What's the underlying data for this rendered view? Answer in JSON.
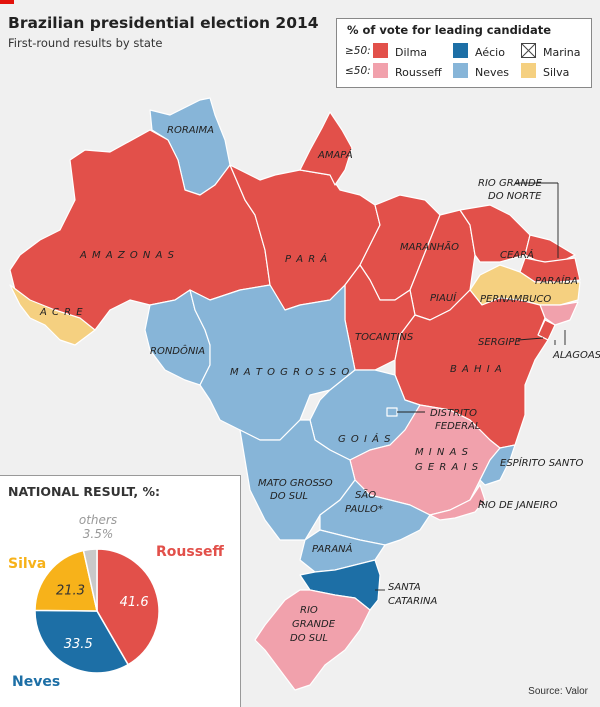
{
  "title": "Brazilian presidential election 2014",
  "subtitle": "First-round results by state",
  "source": "Source: Valor",
  "legend": {
    "title": "% of vote for leading candidate",
    "threshold_high": "≥50:",
    "threshold_low": "≤50:",
    "dilma_line1": "Dilma",
    "dilma_line2": "Rousseff",
    "aecio_line1": "Aécio",
    "aecio_line2": "Neves",
    "marina_line1": "Marina",
    "marina_line2": "Silva"
  },
  "colors": {
    "rousseff_high": "#e2504a",
    "rousseff_low": "#f1a1ac",
    "neves_high": "#1d6fa6",
    "neves_low": "#87b5d8",
    "silva_low": "#f5d080",
    "pie_rousseff": "#e2504a",
    "pie_neves": "#1d6fa6",
    "pie_silva": "#f7b21a",
    "pie_others": "#c9c9c9"
  },
  "states": [
    {
      "label": "RORAIMA",
      "leader": "Neves",
      "share": "≤50"
    },
    {
      "label": "AMAPÁ",
      "leader": "Rousseff",
      "share": "≥50"
    },
    {
      "label": "A M A Z O N A S",
      "leader": "Rousseff",
      "share": "≥50"
    },
    {
      "label": "P A R Á",
      "leader": "Rousseff",
      "share": "≥50"
    },
    {
      "label": "MARANHÃO",
      "leader": "Rousseff",
      "share": "≥50"
    },
    {
      "label": "CEARÁ",
      "leader": "Rousseff",
      "share": "≥50"
    },
    {
      "label": "RIO GRANDE",
      "label2": "DO NORTE",
      "leader": "Rousseff",
      "share": "≥50"
    },
    {
      "label": "PARAÍBA",
      "leader": "Rousseff",
      "share": "≥50"
    },
    {
      "label": "PIAUÍ",
      "leader": "Rousseff",
      "share": "≥50"
    },
    {
      "label": "PERNAMBUCO",
      "leader": "Silva",
      "share": "≤50"
    },
    {
      "label": "ALAGOAS",
      "leader": "Rousseff",
      "share": "≤50"
    },
    {
      "label": "SERGIPE",
      "leader": "Rousseff",
      "share": "≥50"
    },
    {
      "label": "TOCANTINS",
      "leader": "Rousseff",
      "share": "≥50"
    },
    {
      "label": "B A H I A",
      "leader": "Rousseff",
      "share": "≥50"
    },
    {
      "label": "A C R E",
      "leader": "Silva",
      "share": "≤50"
    },
    {
      "label": "RONDÔNIA",
      "leader": "Neves",
      "share": "≤50"
    },
    {
      "label": "M A T O   G R O S S O",
      "leader": "Neves",
      "share": "≤50"
    },
    {
      "label": "DISTRITO",
      "label2": "FEDERAL",
      "leader": "Neves",
      "share": "≤50"
    },
    {
      "label": "G O I Á S",
      "leader": "Neves",
      "share": "≤50"
    },
    {
      "label": "M I N A S",
      "label2": "G E R A I S",
      "leader": "Rousseff",
      "share": "≤50"
    },
    {
      "label": "ESPÍRITO SANTO",
      "leader": "Neves",
      "share": "≤50"
    },
    {
      "label": "MATO GROSSO",
      "label2": "DO SUL",
      "leader": "Neves",
      "share": "≤50"
    },
    {
      "label": "SÃO",
      "label2": "PAULO*",
      "leader": "Neves",
      "share": "≤50"
    },
    {
      "label": "RIO DE JANEIRO",
      "leader": "Rousseff",
      "share": "≤50"
    },
    {
      "label": "PARANÁ",
      "leader": "Neves",
      "share": "≤50"
    },
    {
      "label": "SANTA",
      "label2": "CATARINA",
      "leader": "Neves",
      "share": "≥50"
    },
    {
      "label": "RIO",
      "label2": "GRANDE",
      "label3": "DO SUL",
      "leader": "Rousseff",
      "share": "≤50"
    }
  ],
  "national": {
    "title": "NATIONAL RESULT, %:",
    "slices": [
      {
        "name": "Rousseff",
        "value": 41.6,
        "label": "41.6"
      },
      {
        "name": "Neves",
        "value": 33.5,
        "label": "33.5"
      },
      {
        "name": "Silva",
        "value": 21.3,
        "label": "21.3"
      },
      {
        "name": "others",
        "value": 3.5,
        "label": "3.5%"
      }
    ]
  }
}
